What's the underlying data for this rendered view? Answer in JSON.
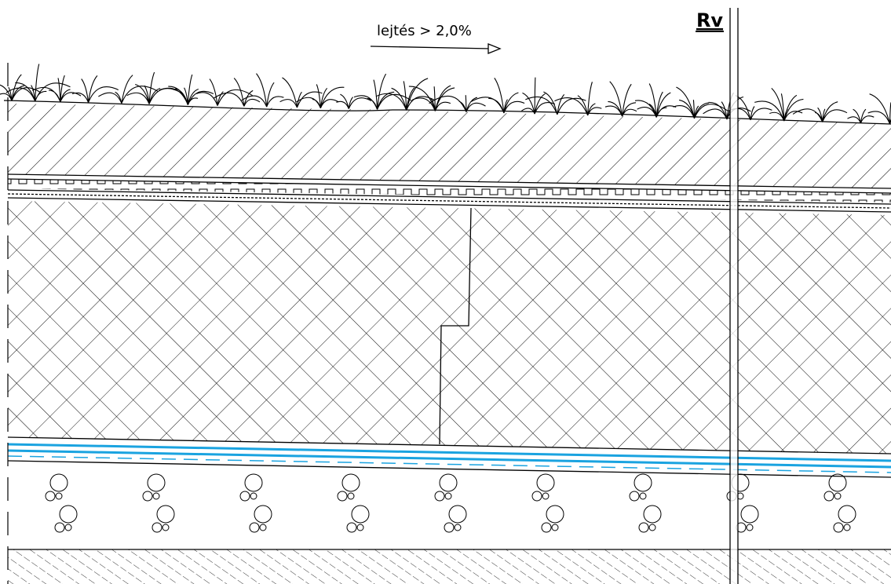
{
  "annotations": {
    "slope": "lejtés > 2,0%",
    "marker": "Rv"
  }
}
